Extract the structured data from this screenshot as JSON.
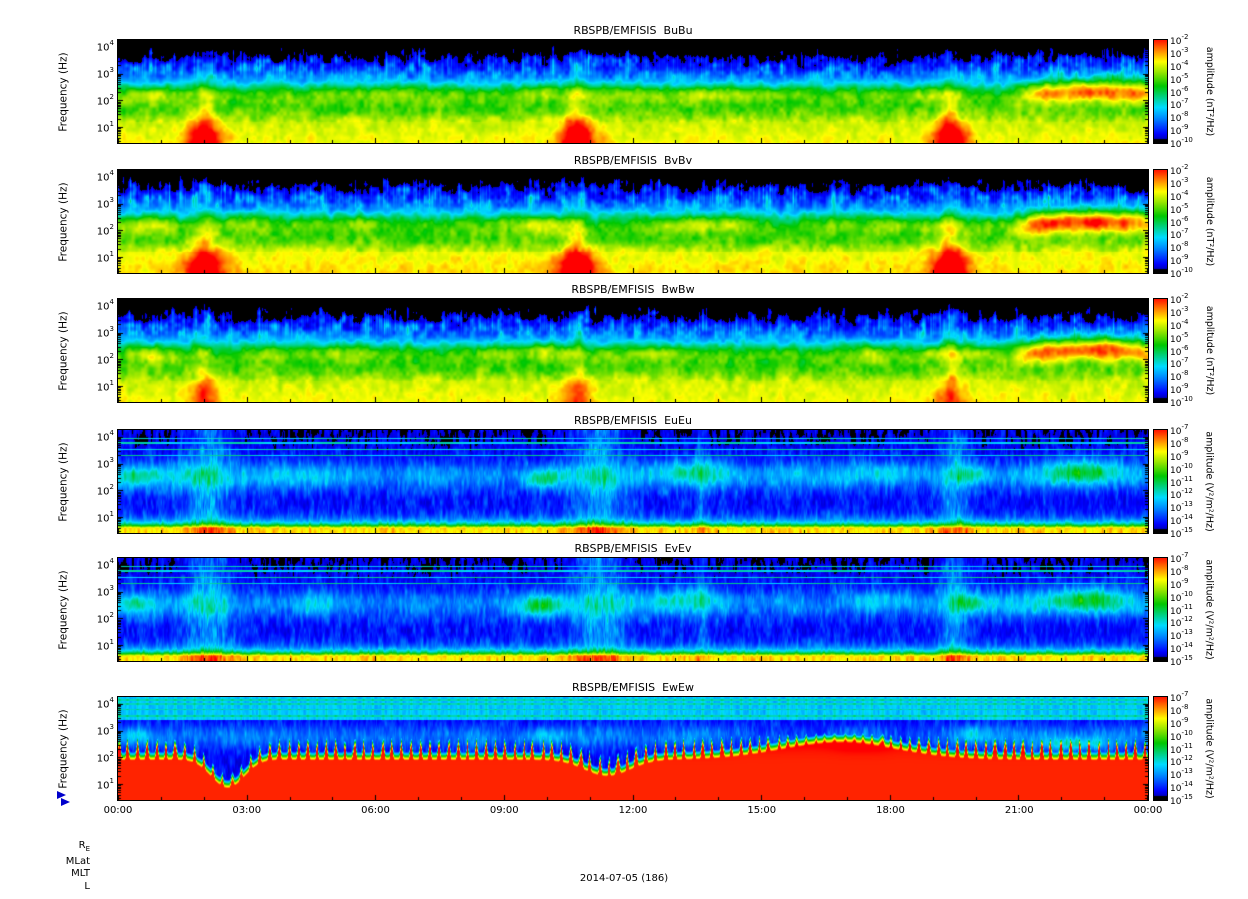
{
  "figure": {
    "date_label": "2014-07-05 (186)",
    "ephemeris_labels": {
      "r": "R",
      "r_sub": "E",
      "mlat": "MLat",
      "mlt": "MLT",
      "l": "L"
    }
  },
  "chart_data": {
    "type": "heatmap",
    "description": "Six stacked 24-hour dynamic power spectrogram panels from RBSP-B/EMFISIS: three magnetic auto-spectra (BuBu, BvBv, BwBw) and three electric auto-spectra (EuEu, EvEv, EwEw), frequency vs. time with log rainbow color scale.",
    "tick_base": "10",
    "x_axis": {
      "tick_labels": [
        "00:00",
        "03:00",
        "06:00",
        "09:00",
        "12:00",
        "15:00",
        "18:00",
        "21:00",
        "00:00"
      ],
      "range_hours": [
        0,
        24
      ],
      "date": "2014-07-05"
    },
    "y_axis": {
      "label": "Frequency (Hz)",
      "scale": "log",
      "tick_exponents": [
        4,
        3,
        2,
        1
      ],
      "range_hz": [
        2.8,
        17800
      ]
    },
    "colormap": "rainbow (red = high, yellow/green mid, blue = low, black = below minimum)",
    "panels": [
      {
        "title": "RBSPB/EMFISIS  BuBu",
        "colorbar": {
          "unit_label": "amplitude (nT²/Hz)",
          "tick_exponents": [
            -2,
            -3,
            -4,
            -5,
            -6,
            -7,
            -8,
            -9,
            -10
          ],
          "max": "1e-2",
          "min": "1e-10"
        },
        "paint": {
          "kind": "B",
          "seed": 1,
          "bottom_boost": 0,
          "hotspot_amp": 0.3,
          "hotspot_times": [
            2.0,
            10.7,
            19.4
          ],
          "spots": [
            [
              0.8,
              2.2,
              0.6,
              0.35,
              0.12
            ],
            [
              5.5,
              2.3,
              1.2,
              0.3,
              0.08
            ],
            [
              9.9,
              2.3,
              0.5,
              0.3,
              0.14
            ],
            [
              13.5,
              2.25,
              1.5,
              0.28,
              0.08
            ],
            [
              19.0,
              2.2,
              0.8,
              0.3,
              0.1
            ],
            [
              22.8,
              2.35,
              1.0,
              0.32,
              0.16
            ]
          ],
          "wedge_start": 20.5
        },
        "features": [
          "continuous yellow band below ~20 Hz all day",
          "green 60-400 Hz emission band with blob-like enhancements",
          "red low-frequency bursts near 02:00, 10:45 and 19:30 UT",
          "yellow-orange 100-1000 Hz wedge structure after 21:00 UT",
          "black above ~2 kHz with sporadic blue vertical streaks"
        ]
      },
      {
        "title": "RBSPB/EMFISIS  BvBv",
        "colorbar": {
          "unit_label": "amplitude (nT²/Hz)",
          "tick_exponents": [
            -2,
            -3,
            -4,
            -5,
            -6,
            -7,
            -8,
            -9,
            -10
          ],
          "max": "1e-2",
          "min": "1e-10"
        },
        "paint": {
          "kind": "B",
          "seed": 2,
          "bottom_boost": 0.03,
          "hotspot_amp": 0.34,
          "hotspot_times": [
            2.0,
            10.7,
            19.4
          ],
          "spots": [
            [
              0.8,
              2.2,
              0.6,
              0.35,
              0.12
            ],
            [
              5.5,
              2.3,
              1.2,
              0.3,
              0.08
            ],
            [
              9.9,
              2.3,
              0.5,
              0.3,
              0.14
            ],
            [
              13.5,
              2.25,
              1.5,
              0.28,
              0.08
            ],
            [
              19.0,
              2.2,
              0.8,
              0.3,
              0.1
            ],
            [
              22.8,
              2.35,
              1.0,
              0.32,
              0.16
            ]
          ],
          "wedge_start": 20.5
        },
        "features": [
          "stronger orange-yellow low-frequency band than BuBu",
          "red bursts near 02:00, 10:45 and 19:30 UT",
          "green mid-frequency emission band",
          "yellow-orange wedge after 21:00 UT"
        ]
      },
      {
        "title": "RBSPB/EMFISIS  BwBw",
        "colorbar": {
          "unit_label": "amplitude (nT²/Hz)",
          "tick_exponents": [
            -2,
            -3,
            -4,
            -5,
            -6,
            -7,
            -8,
            -9,
            -10
          ],
          "max": "1e-2",
          "min": "1e-10"
        },
        "paint": {
          "kind": "B",
          "seed": 3,
          "bottom_boost": 0,
          "hotspot_amp": 0.1,
          "hotspot_times": [
            2.0,
            10.7,
            19.4
          ],
          "spots": [
            [
              0.8,
              2.2,
              0.6,
              0.35,
              0.12
            ],
            [
              5.5,
              2.3,
              1.2,
              0.3,
              0.08
            ],
            [
              9.9,
              2.35,
              0.5,
              0.3,
              0.18
            ],
            [
              13.5,
              2.25,
              1.5,
              0.28,
              0.08
            ],
            [
              19.0,
              2.2,
              0.8,
              0.3,
              0.1
            ],
            [
              22.6,
              2.4,
              1.0,
              0.35,
              0.2
            ]
          ],
          "wedge_start": 20.5
        },
        "features": [
          "yellow band below ~20 Hz without strong red bursts",
          "bright yellow-green spot near 10:20 UT at ~200 Hz",
          "yellow wedge after 21:00 UT",
          "black above ~2 kHz with blue streaks"
        ]
      },
      {
        "title": "RBSPB/EMFISIS  EuEu",
        "colorbar": {
          "unit_label": "amplitude (V²/m²/Hz)",
          "tick_exponents": [
            -7,
            -8,
            -9,
            -10,
            -11,
            -12,
            -13,
            -14,
            -15
          ],
          "max": "1e-7",
          "min": "1e-15"
        },
        "paint": {
          "kind": "E",
          "seed": 4,
          "lines": [
            3.32,
            3.55,
            3.78,
            3.95
          ],
          "streaks": [
            [
              2.1,
              0.5,
              0.22
            ],
            [
              11.2,
              0.6,
              0.22
            ],
            [
              19.5,
              0.35,
              0.2
            ],
            [
              13.6,
              0.15,
              0.1
            ]
          ],
          "spots": [
            [
              0.4,
              2.5,
              0.5,
              0.4,
              0.18
            ],
            [
              9.9,
              2.45,
              0.45,
              0.35,
              0.2
            ],
            [
              13.3,
              2.8,
              0.8,
              0.4,
              0.12
            ],
            [
              17.8,
              2.7,
              0.9,
              0.4,
              0.1
            ],
            [
              19.9,
              2.6,
              0.4,
              0.35,
              0.18
            ],
            [
              22.5,
              2.75,
              0.9,
              0.45,
              0.25
            ]
          ]
        },
        "features": [
          "weak blue/black background above ~10 Hz",
          "intense narrow yellow band below ~5 Hz",
          "patchy green 100 Hz - 2 kHz wave activity",
          "thin instrumental horizontal lines near 2-8 kHz",
          "broadband vertical noise bursts near 02:00, 11:15 and 19:30 UT"
        ]
      },
      {
        "title": "RBSPB/EMFISIS  EvEv",
        "colorbar": {
          "unit_label": "amplitude (V²/m²/Hz)",
          "tick_exponents": [
            -7,
            -8,
            -9,
            -10,
            -11,
            -12,
            -13,
            -14,
            -15
          ],
          "max": "1e-7",
          "min": "1e-15"
        },
        "paint": {
          "kind": "E",
          "seed": 5,
          "lines": [
            3.32,
            3.55,
            3.78,
            3.95
          ],
          "streaks": [
            [
              2.1,
              0.5,
              0.22
            ],
            [
              11.2,
              0.6,
              0.22
            ],
            [
              19.5,
              0.35,
              0.2
            ],
            [
              13.6,
              0.15,
              0.1
            ]
          ],
          "spots": [
            [
              0.4,
              2.5,
              0.5,
              0.4,
              0.18
            ],
            [
              9.9,
              2.45,
              0.45,
              0.35,
              0.2
            ],
            [
              13.3,
              2.8,
              0.8,
              0.4,
              0.12
            ],
            [
              17.8,
              2.7,
              0.9,
              0.4,
              0.1
            ],
            [
              19.9,
              2.6,
              0.4,
              0.35,
              0.18
            ],
            [
              22.5,
              2.75,
              0.9,
              0.45,
              0.25
            ]
          ]
        },
        "features": [
          "similar to EuEu: blue/black background, yellow band below ~5 Hz",
          "green 100 Hz - 2 kHz patches",
          "vertical broadband bursts near 02:00, 11:15 and 19:30 UT",
          "bright green region 21:30-23:30 UT"
        ]
      },
      {
        "title": "RBSPB/EMFISIS  EwEw",
        "colorbar": {
          "unit_label": "amplitude (V²/m²/Hz)",
          "tick_exponents": [
            -7,
            -8,
            -9,
            -10,
            -11,
            -12,
            -13,
            -14,
            -15
          ],
          "max": "1e-7",
          "min": "1e-15"
        },
        "paint": {
          "kind": "Ew",
          "seed": 6,
          "gaps": [
            [
              2.55,
              0.55,
              1.15
            ],
            [
              11.4,
              0.75,
              0.6
            ]
          ],
          "bulge": [
            16.8,
            2.0,
            0.45
          ],
          "lines": [
            3.55,
            3.8,
            4.0,
            4.15
          ],
          "spots": [
            [
              0.4,
              2.8,
              0.4,
              0.3,
              0.12
            ],
            [
              9.9,
              2.8,
              0.5,
              0.3,
              0.15
            ],
            [
              19.9,
              2.9,
              0.4,
              0.3,
              0.12
            ],
            [
              22.3,
              2.5,
              0.8,
              0.25,
              0.22
            ]
          ]
        },
        "features": [
          "saturated red below ~200 Hz for most of the day with comb-like vertical striping",
          "solid red enhancement 15:00-18:40 UT reaching ~400 Hz",
          "reduced intensity gaps near 02:30 and 11:30 UT",
          "cyan banded structure with horizontal lines above ~3 kHz",
          "green patches 300 Hz - 1 kHz"
        ]
      }
    ]
  }
}
